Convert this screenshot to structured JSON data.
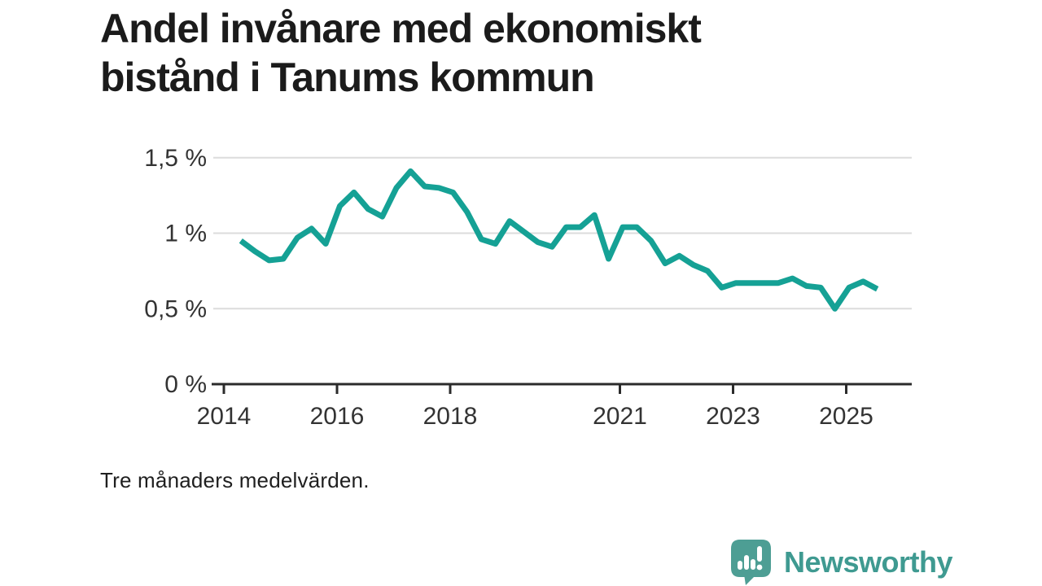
{
  "title": {
    "text": "Andel invånare med ekonomiskt\nbistånd i Tanums kommun"
  },
  "footnote": {
    "text": "Tre månaders medelvärden."
  },
  "logo": {
    "wordmark": "Newsworthy",
    "icon": "newsworthy-badge-bar-chart-exclamation-icon",
    "badge_color": "#4d9e94",
    "wordmark_color": "#3f9a91"
  },
  "chart_data": {
    "type": "line",
    "title": "Andel invånare med ekonomiskt bistånd i Tanums kommun",
    "subtitle": "Tre månaders medelvärden.",
    "xlabel": "",
    "ylabel": "",
    "unit": "%",
    "xlim": [
      2013.8,
      2026.2
    ],
    "ylim": [
      0,
      1.5
    ],
    "grid": "horizontal",
    "legend": "none",
    "line_color": "#15a195",
    "grid_color": "#dcdcdc",
    "axis_color": "#2b2b2b",
    "label_color": "#333333",
    "x_ticks": [
      {
        "year": 2014,
        "label": "2014"
      },
      {
        "year": 2016,
        "label": "2016"
      },
      {
        "year": 2018,
        "label": "2018"
      },
      {
        "year": 2021,
        "label": "2021"
      },
      {
        "year": 2023,
        "label": "2023"
      },
      {
        "year": 2025,
        "label": "2025"
      }
    ],
    "y_ticks": [
      {
        "value": 0,
        "label": "0 %"
      },
      {
        "value": 0.5,
        "label": "0,5 %"
      },
      {
        "value": 1,
        "label": "1 %"
      },
      {
        "value": 1.5,
        "label": "1,5 %"
      }
    ],
    "series": [
      {
        "name": "Andel invånare med ekonomiskt bistånd",
        "points": [
          [
            2014.3,
            0.95
          ],
          [
            2014.55,
            0.88
          ],
          [
            2014.8,
            0.82
          ],
          [
            2015.05,
            0.83
          ],
          [
            2015.3,
            0.97
          ],
          [
            2015.55,
            1.03
          ],
          [
            2015.8,
            0.93
          ],
          [
            2016.05,
            1.18
          ],
          [
            2016.3,
            1.27
          ],
          [
            2016.55,
            1.16
          ],
          [
            2016.8,
            1.11
          ],
          [
            2017.05,
            1.3
          ],
          [
            2017.3,
            1.41
          ],
          [
            2017.55,
            1.31
          ],
          [
            2017.8,
            1.3
          ],
          [
            2018.05,
            1.27
          ],
          [
            2018.3,
            1.14
          ],
          [
            2018.55,
            0.96
          ],
          [
            2018.8,
            0.93
          ],
          [
            2019.05,
            1.08
          ],
          [
            2019.3,
            1.01
          ],
          [
            2019.55,
            0.94
          ],
          [
            2019.8,
            0.91
          ],
          [
            2020.05,
            1.04
          ],
          [
            2020.3,
            1.04
          ],
          [
            2020.55,
            1.12
          ],
          [
            2020.8,
            0.83
          ],
          [
            2021.05,
            1.04
          ],
          [
            2021.3,
            1.04
          ],
          [
            2021.55,
            0.95
          ],
          [
            2021.8,
            0.8
          ],
          [
            2022.05,
            0.85
          ],
          [
            2022.3,
            0.79
          ],
          [
            2022.55,
            0.75
          ],
          [
            2022.8,
            0.64
          ],
          [
            2023.05,
            0.67
          ],
          [
            2023.3,
            0.67
          ],
          [
            2023.55,
            0.67
          ],
          [
            2023.8,
            0.67
          ],
          [
            2024.05,
            0.7
          ],
          [
            2024.3,
            0.65
          ],
          [
            2024.55,
            0.64
          ],
          [
            2024.8,
            0.5
          ],
          [
            2025.05,
            0.64
          ],
          [
            2025.3,
            0.68
          ],
          [
            2025.55,
            0.63
          ]
        ]
      }
    ]
  }
}
